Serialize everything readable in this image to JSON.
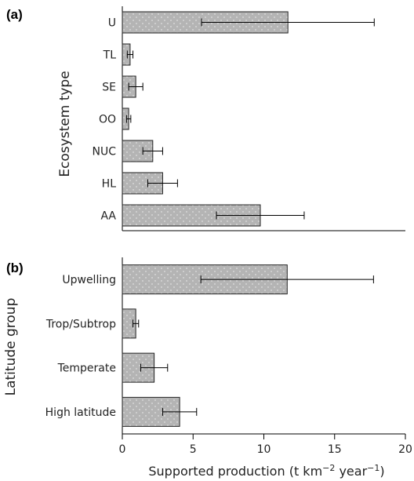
{
  "chart_data": [
    {
      "type": "bar",
      "orientation": "horizontal",
      "panel_label": "(a)",
      "ylabel": "Ecosystem type",
      "categories": [
        "U",
        "TL",
        "SE",
        "OO",
        "NUC",
        "HL",
        "AA"
      ],
      "values": [
        11.7,
        0.55,
        0.95,
        0.45,
        2.15,
        2.85,
        9.75
      ],
      "error": [
        6.1,
        0.2,
        0.5,
        0.15,
        0.7,
        1.05,
        3.1
      ],
      "xlim": [
        0,
        20
      ],
      "bar_color": "#b4b4b4"
    },
    {
      "type": "bar",
      "orientation": "horizontal",
      "panel_label": "(b)",
      "ylabel": "Latitude group",
      "categories": [
        "Upwelling",
        "Trop/Subtrop",
        "Temperate",
        "High latitude"
      ],
      "values": [
        11.65,
        0.95,
        2.25,
        4.05
      ],
      "error": [
        6.1,
        0.2,
        0.95,
        1.2
      ],
      "xlim": [
        0,
        20
      ],
      "xticks": [
        0,
        5,
        10,
        15,
        20
      ],
      "bar_color": "#b4b4b4"
    }
  ],
  "xlabel_main": "Supported production (t km",
  "xlabel_sup1": "−2",
  "xlabel_mid": " year",
  "xlabel_sup2": "−1",
  "xlabel_end": ")"
}
